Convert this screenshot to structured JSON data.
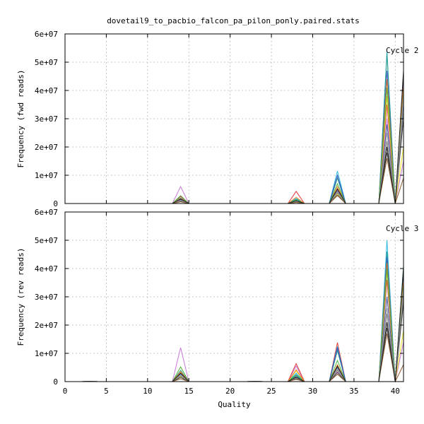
{
  "chart_data": [
    {
      "type": "line",
      "title": "dovetail9_to_pacbio_falcon_pa_pilon_ponly.paired.stats",
      "xlabel": "",
      "ylabel": "Frequency (fwd reads)",
      "xlim": [
        0,
        41
      ],
      "ylim": [
        0,
        60000000
      ],
      "y_ticks": [
        "0",
        "1e+07",
        "2e+07",
        "3e+07",
        "4e+07",
        "5e+07",
        "6e+07"
      ],
      "grid": true,
      "annotation": "Cycle 2",
      "x": [
        13,
        14,
        15,
        27,
        28,
        29,
        32,
        33,
        34,
        38,
        39,
        40,
        41
      ],
      "series": [
        {
          "color": "#c878d8",
          "values": [
            0,
            6000000,
            0,
            0,
            1000000,
            0,
            0,
            4000000,
            0,
            0,
            30000000,
            0,
            15000000
          ]
        },
        {
          "color": "#e03a3a",
          "values": [
            0,
            2500000,
            0,
            0,
            4300000,
            0,
            0,
            5000000,
            0,
            0,
            35000000,
            0,
            41000000
          ]
        },
        {
          "color": "#30b8e0",
          "values": [
            0,
            1500000,
            0,
            0,
            1800000,
            0,
            0,
            11500000,
            0,
            0,
            54000000,
            0,
            45000000
          ]
        },
        {
          "color": "#2a9a8a",
          "values": [
            0,
            2000000,
            0,
            0,
            1500000,
            0,
            0,
            9000000,
            0,
            0,
            53000000,
            0,
            46000000
          ]
        },
        {
          "color": "#3050c0",
          "values": [
            0,
            1200000,
            0,
            0,
            900000,
            0,
            0,
            10000000,
            0,
            0,
            47000000,
            0,
            44000000
          ]
        },
        {
          "color": "#f0e020",
          "values": [
            0,
            1000000,
            0,
            0,
            1000000,
            0,
            0,
            3500000,
            0,
            0,
            38000000,
            0,
            20000000
          ]
        },
        {
          "color": "#f08020",
          "values": [
            0,
            1800000,
            0,
            0,
            2200000,
            0,
            0,
            6000000,
            0,
            0,
            44000000,
            0,
            42000000
          ]
        },
        {
          "color": "#50b040",
          "values": [
            0,
            2800000,
            0,
            0,
            1200000,
            0,
            0,
            7000000,
            0,
            0,
            41000000,
            0,
            39000000
          ]
        },
        {
          "color": "#4060a0",
          "values": [
            0,
            1400000,
            0,
            0,
            800000,
            0,
            0,
            4500000,
            0,
            0,
            28000000,
            0,
            36000000
          ]
        },
        {
          "color": "#808080",
          "values": [
            0,
            900000,
            0,
            0,
            600000,
            0,
            0,
            3800000,
            0,
            0,
            22000000,
            0,
            33000000
          ]
        },
        {
          "color": "#404040",
          "values": [
            0,
            700000,
            0,
            0,
            500000,
            0,
            0,
            3000000,
            0,
            0,
            18000000,
            0,
            30000000
          ]
        },
        {
          "color": "#a0a0a0",
          "values": [
            0,
            1100000,
            0,
            0,
            700000,
            0,
            0,
            4200000,
            0,
            0,
            25000000,
            0,
            38000000
          ]
        },
        {
          "color": "#8a5a30",
          "values": [
            0,
            600000,
            0,
            0,
            400000,
            0,
            0,
            2800000,
            0,
            0,
            16000000,
            0,
            9000000
          ]
        },
        {
          "color": "#202020",
          "values": [
            0,
            1600000,
            0,
            0,
            1000000,
            0,
            0,
            5200000,
            0,
            0,
            20000000,
            0,
            47000000
          ]
        }
      ]
    },
    {
      "type": "line",
      "title": "",
      "xlabel": "Quality",
      "ylabel": "Frequency (rev reads)",
      "xlim": [
        0,
        41
      ],
      "ylim": [
        0,
        60000000
      ],
      "x_ticks": [
        "0",
        "5",
        "10",
        "15",
        "20",
        "25",
        "30",
        "35",
        "40"
      ],
      "y_ticks": [
        "0",
        "1e+07",
        "2e+07",
        "3e+07",
        "4e+07",
        "5e+07",
        "6e+07"
      ],
      "grid": true,
      "annotation": "Cycle 3",
      "x": [
        2,
        3,
        4,
        13,
        14,
        15,
        22,
        23,
        24,
        27,
        28,
        29,
        32,
        33,
        34,
        38,
        39,
        40,
        41
      ],
      "series": [
        {
          "color": "#c878d8",
          "values": [
            0,
            100000,
            0,
            0,
            12000000,
            0,
            0,
            50000,
            0,
            0,
            5500000,
            0,
            0,
            3500000,
            0,
            0,
            30000000,
            0,
            14000000
          ]
        },
        {
          "color": "#e03a3a",
          "values": [
            0,
            80000,
            0,
            0,
            3000000,
            0,
            0,
            50000,
            0,
            0,
            6400000,
            0,
            0,
            13800000,
            0,
            0,
            36000000,
            0,
            40000000
          ]
        },
        {
          "color": "#30b8e0",
          "values": [
            0,
            60000,
            0,
            0,
            2500000,
            0,
            0,
            50000,
            0,
            0,
            3000000,
            0,
            0,
            12500000,
            0,
            0,
            50000000,
            0,
            37000000
          ]
        },
        {
          "color": "#2a9a8a",
          "values": [
            0,
            50000,
            0,
            0,
            4000000,
            0,
            0,
            50000,
            0,
            0,
            2500000,
            0,
            0,
            11000000,
            0,
            0,
            46000000,
            0,
            41000000
          ]
        },
        {
          "color": "#3050c0",
          "values": [
            0,
            50000,
            0,
            0,
            2000000,
            0,
            0,
            50000,
            0,
            0,
            1800000,
            0,
            0,
            12000000,
            0,
            0,
            44000000,
            0,
            39000000
          ]
        },
        {
          "color": "#f0e020",
          "values": [
            0,
            50000,
            0,
            0,
            1800000,
            0,
            0,
            50000,
            0,
            0,
            3800000,
            0,
            0,
            4000000,
            0,
            0,
            39000000,
            0,
            18000000
          ]
        },
        {
          "color": "#f08020",
          "values": [
            0,
            50000,
            0,
            0,
            3500000,
            0,
            0,
            50000,
            0,
            0,
            4200000,
            0,
            0,
            6000000,
            0,
            0,
            42000000,
            0,
            36000000
          ]
        },
        {
          "color": "#50b040",
          "values": [
            0,
            50000,
            0,
            0,
            5200000,
            0,
            0,
            50000,
            0,
            0,
            2200000,
            0,
            0,
            7500000,
            0,
            0,
            40000000,
            0,
            34000000
          ]
        },
        {
          "color": "#4060a0",
          "values": [
            0,
            50000,
            0,
            0,
            2800000,
            0,
            0,
            50000,
            0,
            0,
            1500000,
            0,
            0,
            5000000,
            0,
            0,
            30000000,
            0,
            32000000
          ]
        },
        {
          "color": "#808080",
          "values": [
            0,
            50000,
            0,
            0,
            2000000,
            0,
            0,
            50000,
            0,
            0,
            1200000,
            0,
            0,
            4000000,
            0,
            0,
            24000000,
            0,
            30000000
          ]
        },
        {
          "color": "#404040",
          "values": [
            0,
            50000,
            0,
            0,
            1500000,
            0,
            0,
            50000,
            0,
            0,
            1000000,
            0,
            0,
            3200000,
            0,
            0,
            19000000,
            0,
            28000000
          ]
        },
        {
          "color": "#a0a0a0",
          "values": [
            0,
            50000,
            0,
            0,
            2400000,
            0,
            0,
            50000,
            0,
            0,
            1300000,
            0,
            0,
            4500000,
            0,
            0,
            26000000,
            0,
            33000000
          ]
        },
        {
          "color": "#8a5a30",
          "values": [
            0,
            50000,
            0,
            0,
            1000000,
            0,
            0,
            50000,
            0,
            0,
            800000,
            0,
            0,
            2600000,
            0,
            0,
            17000000,
            0,
            6000000
          ]
        },
        {
          "color": "#202020",
          "values": [
            0,
            50000,
            0,
            0,
            3000000,
            0,
            0,
            50000,
            0,
            0,
            1600000,
            0,
            0,
            5500000,
            0,
            0,
            21000000,
            0,
            40000000
          ]
        }
      ]
    }
  ]
}
